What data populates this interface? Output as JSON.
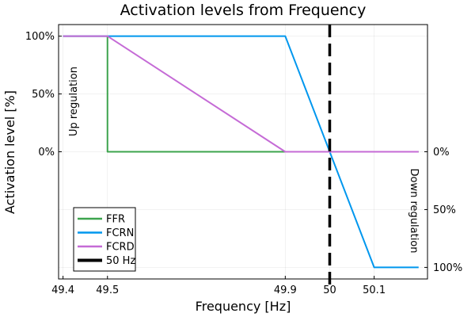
{
  "chart_data": {
    "type": "line",
    "title": "Activation levels from Frequency",
    "xlabel": "Frequency [Hz]",
    "ylabel": "Activation level [%]",
    "xlim": [
      49.39,
      50.22
    ],
    "ylim": [
      -110,
      110
    ],
    "x_ticks": [
      {
        "value": 49.4,
        "label": "49.4"
      },
      {
        "value": 49.5,
        "label": "49.5"
      },
      {
        "value": 49.9,
        "label": "49.9"
      },
      {
        "value": 50.0,
        "label": "50"
      },
      {
        "value": 50.1,
        "label": "50.1"
      }
    ],
    "y_ticks_left": [
      {
        "value": 100,
        "label": "100%"
      },
      {
        "value": 50,
        "label": "50%"
      },
      {
        "value": 0,
        "label": "0%"
      }
    ],
    "y_ticks_right": [
      {
        "value": 0,
        "label": "0%"
      },
      {
        "value": -50,
        "label": "50%"
      },
      {
        "value": -100,
        "label": "100%"
      }
    ],
    "grid": true,
    "legend_position": "bottom-left",
    "annotations": [
      {
        "text": "Up regulation",
        "side": "left"
      },
      {
        "text": "Down regulation",
        "side": "right"
      }
    ],
    "vline": {
      "name": "50 Hz",
      "x": 50.0,
      "color": "#000000",
      "dash": "dashed"
    },
    "series": [
      {
        "name": "FFR",
        "color": "#3da44d",
        "x": [
          49.4,
          49.5,
          49.5,
          50.2
        ],
        "y": [
          100,
          100,
          0,
          0
        ]
      },
      {
        "name": "FCRN",
        "color": "#0097ee",
        "x": [
          49.4,
          49.9,
          50.1,
          50.2
        ],
        "y": [
          100,
          100,
          -100,
          -100
        ]
      },
      {
        "name": "FCRD",
        "color": "#c56bd6",
        "x": [
          49.4,
          49.5,
          49.9,
          50.2
        ],
        "y": [
          100,
          100,
          0,
          0
        ]
      }
    ]
  }
}
